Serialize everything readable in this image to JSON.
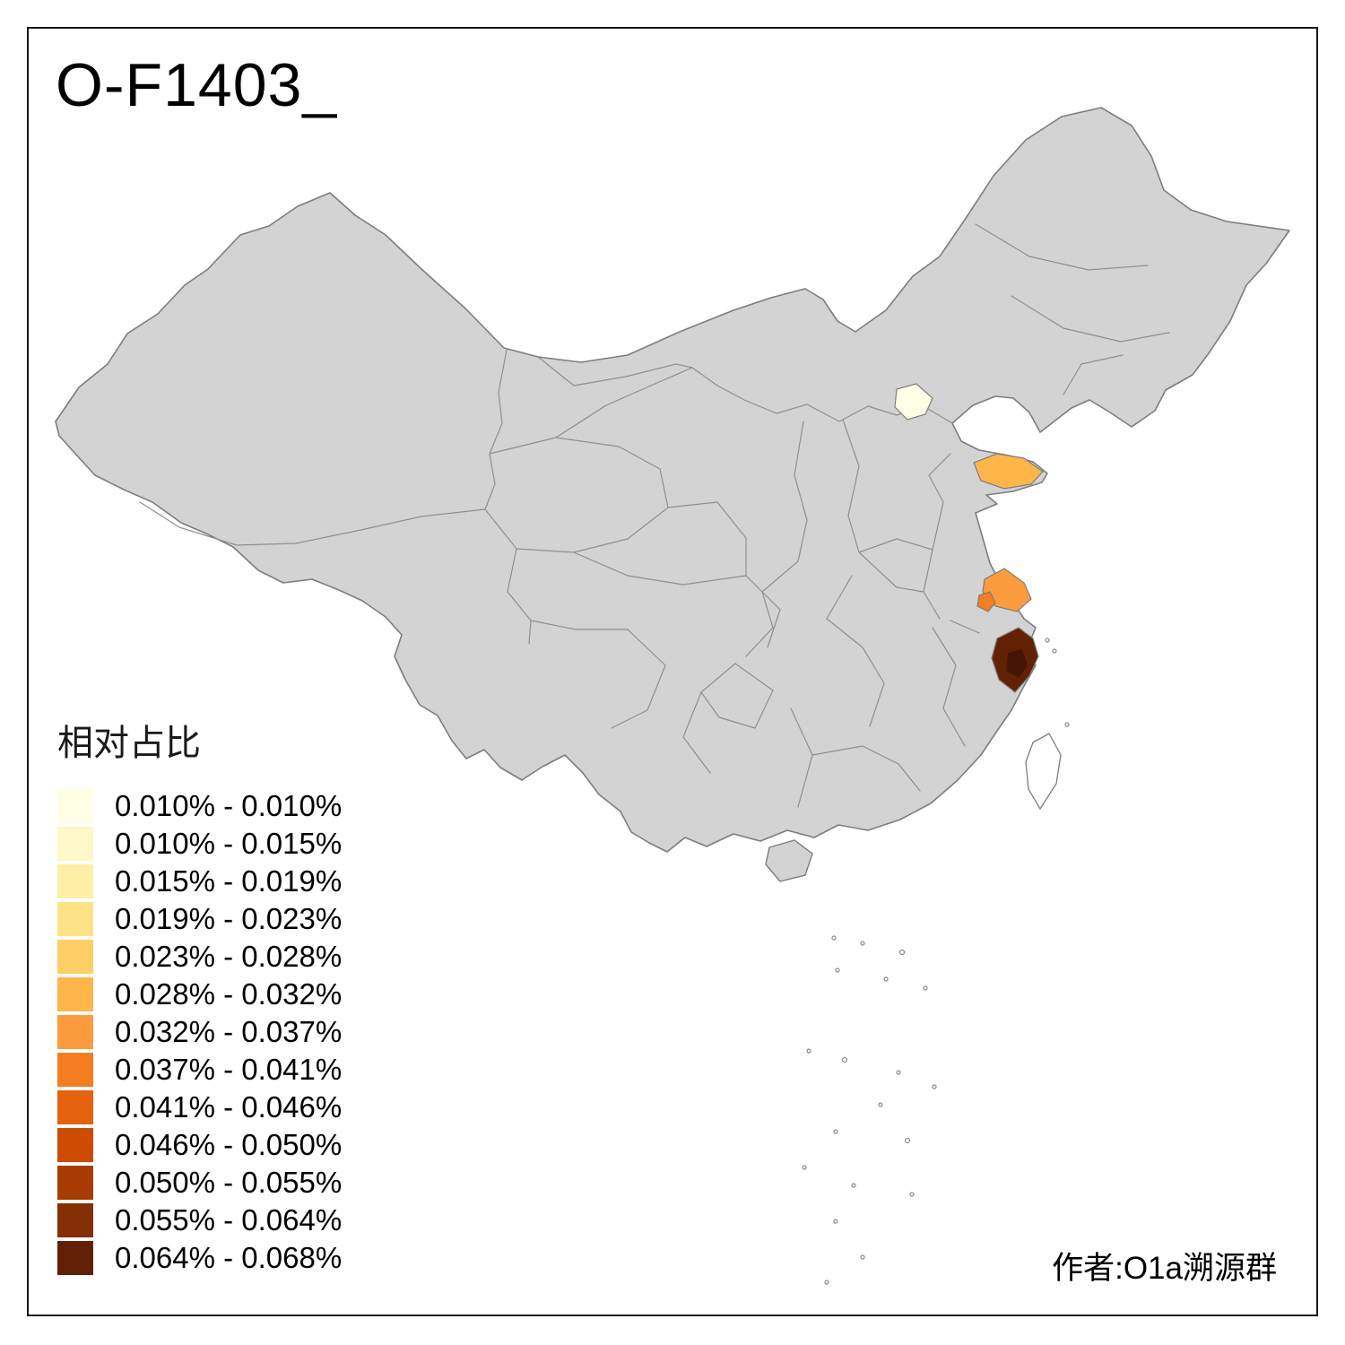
{
  "title": "O-F1403_",
  "author": "作者:O1a溯源群",
  "legend": {
    "title": "相对占比",
    "bins": [
      {
        "label": "0.010% - 0.010%",
        "color": "#ffffe5"
      },
      {
        "label": "0.010% - 0.015%",
        "color": "#fff8c8"
      },
      {
        "label": "0.015% - 0.019%",
        "color": "#ffefa6"
      },
      {
        "label": "0.019% - 0.023%",
        "color": "#fee287"
      },
      {
        "label": "0.023% - 0.028%",
        "color": "#fecf66"
      },
      {
        "label": "0.028% - 0.032%",
        "color": "#feb54a"
      },
      {
        "label": "0.032% - 0.037%",
        "color": "#fd9b3f"
      },
      {
        "label": "0.037% - 0.041%",
        "color": "#f47d22"
      },
      {
        "label": "0.041% - 0.046%",
        "color": "#e5620f"
      },
      {
        "label": "0.046% - 0.050%",
        "color": "#cc4c02"
      },
      {
        "label": "0.050% - 0.055%",
        "color": "#a83c03"
      },
      {
        "label": "0.055% - 0.064%",
        "color": "#842f05"
      },
      {
        "label": "0.064% - 0.068%",
        "color": "#622105"
      }
    ]
  },
  "map": {
    "base_fill": "#d3d3d3",
    "border_color": "#7d7d7d",
    "water_fill": "#ffffff",
    "regions": [
      {
        "id": "beijing-area",
        "color": "#ffffe5"
      },
      {
        "id": "shandong-peninsula-area",
        "color": "#feb54a"
      },
      {
        "id": "jiangsu-area",
        "color": "#fd9b3f"
      },
      {
        "id": "south-jiangsu-area",
        "color": "#f47d22"
      },
      {
        "id": "zhejiang-area",
        "color": "#622105"
      },
      {
        "id": "zhejiang-inner-area",
        "color": "#451504"
      }
    ]
  }
}
